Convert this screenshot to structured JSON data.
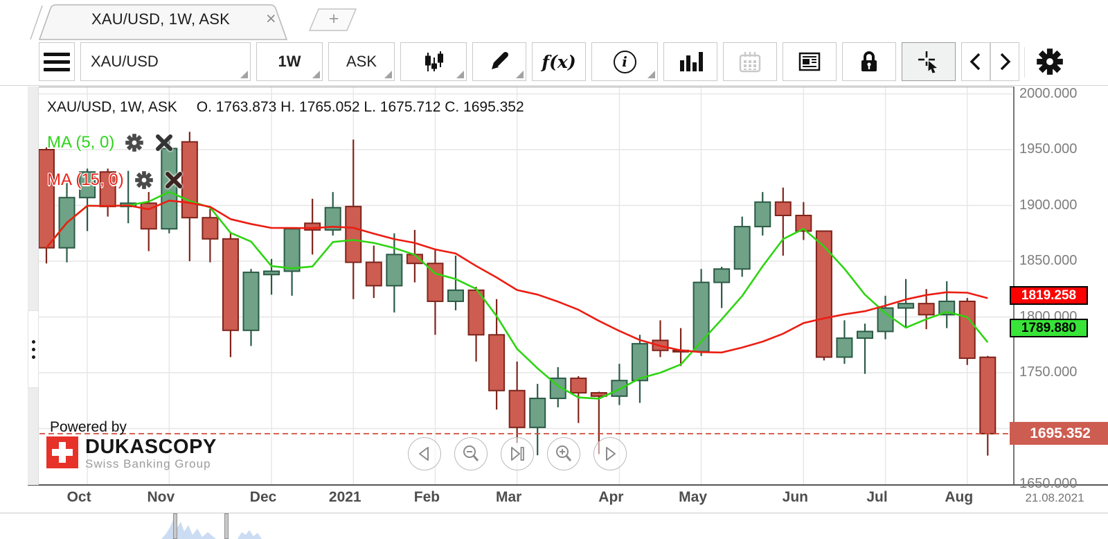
{
  "tab_bar": {
    "active_tab": "XAU/USD, 1W, ASK",
    "close_glyph": "×",
    "new_tab_glyph": "+"
  },
  "toolbar": {
    "symbol": "XAU/USD",
    "period": "1W",
    "side": "ASK",
    "fx_label": "f(x)",
    "info_glyph": "i"
  },
  "chart": {
    "ohlc": {
      "symbol_text": "XAU/USD, 1W, ASK",
      "values_text": "O. 1763.873 H. 1765.052 L. 1675.712 C. 1695.352"
    },
    "indicators": [
      {
        "label": "MA (5, 0)",
        "color": "#2fd41c"
      },
      {
        "label": "MA (15, 0)",
        "color": "#ea241a"
      }
    ],
    "watermark": {
      "powered_by": "Powered by",
      "brand": "DUKASCOPY",
      "subtitle": "Swiss Banking Group"
    },
    "axis_corner_date": "21.08.2021"
  },
  "chart_data": {
    "type": "candlestick",
    "symbol": "XAU/USD",
    "period": "1W",
    "side": "ASK",
    "ylim": [
      1637,
      2008
    ],
    "yticks": [
      "2000.000",
      "1950.000",
      "1900.000",
      "1850.000",
      "1800.000",
      "1750.000",
      "1700.000",
      "1650.000"
    ],
    "grid": true,
    "candles": [
      [
        1950,
        1952,
        1848,
        1862
      ],
      [
        1862,
        1921,
        1849,
        1907
      ],
      [
        1907,
        1933,
        1877,
        1930
      ],
      [
        1930,
        1933,
        1890,
        1899
      ],
      [
        1899,
        1931,
        1884,
        1902
      ],
      [
        1902,
        1912,
        1859,
        1879
      ],
      [
        1879,
        1962,
        1875,
        1951
      ],
      [
        1957,
        1966,
        1850,
        1889
      ],
      [
        1889,
        1897,
        1849,
        1870
      ],
      [
        1870,
        1876,
        1764,
        1788
      ],
      [
        1788,
        1843,
        1774,
        1840
      ],
      [
        1838,
        1852,
        1820,
        1841
      ],
      [
        1841,
        1880,
        1819,
        1879
      ],
      [
        1884,
        1906,
        1856,
        1878
      ],
      [
        1878,
        1912,
        1873,
        1898
      ],
      [
        1899,
        1959,
        1816,
        1849
      ],
      [
        1849,
        1864,
        1817,
        1828
      ],
      [
        1828,
        1875,
        1804,
        1856
      ],
      [
        1856,
        1878,
        1831,
        1848
      ],
      [
        1848,
        1861,
        1784,
        1814
      ],
      [
        1814,
        1855,
        1806,
        1824
      ],
      [
        1824,
        1827,
        1760,
        1784
      ],
      [
        1784,
        1816,
        1717,
        1734
      ],
      [
        1734,
        1760,
        1687,
        1701
      ],
      [
        1701,
        1740,
        1676,
        1727
      ],
      [
        1727,
        1755,
        1719,
        1745
      ],
      [
        1745,
        1747,
        1705,
        1732
      ],
      [
        1732,
        1733,
        1677,
        1729
      ],
      [
        1729,
        1758,
        1721,
        1743
      ],
      [
        1743,
        1784,
        1723,
        1776
      ],
      [
        1779,
        1797,
        1764,
        1770
      ],
      [
        1770,
        1790,
        1756,
        1769
      ],
      [
        1769,
        1843,
        1765,
        1831
      ],
      [
        1831,
        1845,
        1808,
        1843
      ],
      [
        1843,
        1890,
        1836,
        1881
      ],
      [
        1881,
        1912,
        1873,
        1903
      ],
      [
        1903,
        1916,
        1855,
        1891
      ],
      [
        1891,
        1903,
        1869,
        1877
      ],
      [
        1877,
        1877,
        1761,
        1764
      ],
      [
        1764,
        1797,
        1758,
        1781
      ],
      [
        1781,
        1794,
        1749,
        1787
      ],
      [
        1787,
        1819,
        1780,
        1808
      ],
      [
        1808,
        1834,
        1791,
        1812
      ],
      [
        1812,
        1825,
        1789,
        1802
      ],
      [
        1802,
        1832,
        1790,
        1814
      ],
      [
        1814,
        1817,
        1757,
        1763
      ],
      [
        1763.873,
        1765.052,
        1675.712,
        1695.352
      ]
    ],
    "candle_colors": {
      "up_fill": "#6fa287",
      "up_stroke": "#2a5a45",
      "down_fill": "#cd5c51",
      "down_stroke": "#7e241b"
    },
    "month_ticks": [
      {
        "label": "Oct",
        "index": 2
      },
      {
        "label": "Nov",
        "index": 6
      },
      {
        "label": "Dec",
        "index": 11
      },
      {
        "label": "2021",
        "index": 15
      },
      {
        "label": "Feb",
        "index": 19
      },
      {
        "label": "Mar",
        "index": 23
      },
      {
        "label": "Apr",
        "index": 28
      },
      {
        "label": "May",
        "index": 32
      },
      {
        "label": "Jun",
        "index": 37
      },
      {
        "label": "Jul",
        "index": 41
      },
      {
        "label": "Aug",
        "index": 45
      }
    ],
    "moving_averages": [
      {
        "name": "MA 5",
        "window": 5,
        "color": "#2ed412",
        "last_value": 1789.88
      },
      {
        "name": "MA 15",
        "window": 15,
        "color": "#ec1d12",
        "last_value": 1819.258
      }
    ],
    "last_price": 1695.352,
    "last_price_line_color": "#cf4b3d",
    "axis_markers": [
      {
        "value": "1819.258",
        "price": 1819.258,
        "bg": "#ff0000",
        "color": "#ffffff",
        "border": "#000000",
        "tall": false
      },
      {
        "value": "1789.880",
        "price": 1789.88,
        "bg": "#37e437",
        "color": "#000000",
        "border": "#000000",
        "tall": false
      },
      {
        "value": "1695.352",
        "price": 1695.352,
        "bg": "#cd5c51",
        "color": "#ffffff",
        "border": null,
        "tall": true
      }
    ]
  }
}
